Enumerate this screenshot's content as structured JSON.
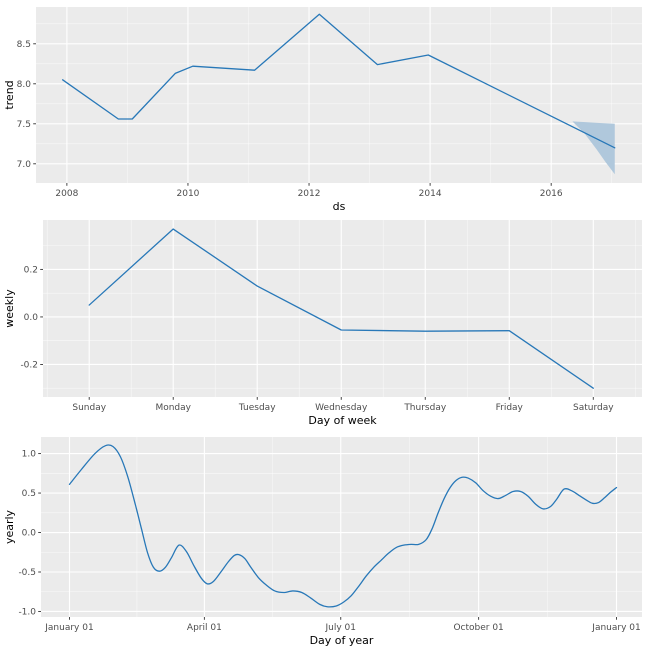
{
  "colors": {
    "page_bg": "#ffffff",
    "panel_bg": "#ebebeb",
    "grid_major": "#ffffff",
    "grid_minor": "#f7f7f7",
    "line": "#2878b8",
    "band": "#b0c8dc",
    "tick_text": "#4d4d4d",
    "title_text": "#000000",
    "tick_mark": "#333333"
  },
  "chart_data": [
    {
      "type": "line",
      "name": "trend",
      "xlabel": "ds",
      "ylabel": "trend",
      "xlim": [
        2007.49,
        2017.5
      ],
      "ylim": [
        6.76,
        8.96
      ],
      "x_ticks": [
        {
          "v": 2008,
          "label": "2008"
        },
        {
          "v": 2010,
          "label": "2010"
        },
        {
          "v": 2012,
          "label": "2012"
        },
        {
          "v": 2014,
          "label": "2014"
        },
        {
          "v": 2016,
          "label": "2016"
        }
      ],
      "x_minor": [
        2009,
        2011,
        2013,
        2015,
        2017
      ],
      "y_ticks": [
        {
          "v": 7.0,
          "label": "7.0"
        },
        {
          "v": 7.5,
          "label": "7.5"
        },
        {
          "v": 8.0,
          "label": "8.0"
        },
        {
          "v": 8.5,
          "label": "8.5"
        }
      ],
      "y_minor": [
        6.75,
        7.25,
        7.75,
        8.25,
        8.75
      ],
      "smooth": false,
      "series": [
        {
          "name": "trend",
          "points": [
            [
              2007.93,
              8.05
            ],
            [
              2008.85,
              7.56
            ],
            [
              2009.08,
              7.56
            ],
            [
              2009.79,
              8.13
            ],
            [
              2010.08,
              8.22
            ],
            [
              2011.1,
              8.17
            ],
            [
              2012.17,
              8.87
            ],
            [
              2013.13,
              8.24
            ],
            [
              2013.97,
              8.36
            ],
            [
              2017.05,
              7.2
            ]
          ]
        }
      ],
      "band": {
        "upper": [
          [
            2016.35,
            7.53
          ],
          [
            2016.6,
            7.52
          ],
          [
            2016.8,
            7.51
          ],
          [
            2017.05,
            7.5
          ]
        ],
        "lower": [
          [
            2016.35,
            7.53
          ],
          [
            2016.55,
            7.38
          ],
          [
            2016.75,
            7.18
          ],
          [
            2016.9,
            7.02
          ],
          [
            2017.05,
            6.87
          ]
        ]
      }
    },
    {
      "type": "line",
      "name": "weekly",
      "xlabel": "Day of week",
      "ylabel": "weekly",
      "xlim": [
        -0.55,
        6.58
      ],
      "ylim": [
        -0.337,
        0.408
      ],
      "x_ticks": [
        {
          "v": 0,
          "label": "Sunday"
        },
        {
          "v": 1,
          "label": "Monday"
        },
        {
          "v": 2,
          "label": "Tuesday"
        },
        {
          "v": 3,
          "label": "Wednesday"
        },
        {
          "v": 4,
          "label": "Thursday"
        },
        {
          "v": 5,
          "label": "Friday"
        },
        {
          "v": 6,
          "label": "Saturday"
        }
      ],
      "x_minor": [
        -0.5,
        0.5,
        1.5,
        2.5,
        3.5,
        4.5,
        5.5,
        6.5
      ],
      "y_ticks": [
        {
          "v": -0.2,
          "label": "-0.2"
        },
        {
          "v": 0.0,
          "label": "0.0"
        },
        {
          "v": 0.2,
          "label": "0.2"
        }
      ],
      "y_minor": [
        -0.3,
        -0.1,
        0.1,
        0.3
      ],
      "smooth": false,
      "series": [
        {
          "name": "weekly",
          "points": [
            [
              0,
              0.05
            ],
            [
              1,
              0.37
            ],
            [
              2,
              0.13
            ],
            [
              3,
              -0.055
            ],
            [
              4,
              -0.06
            ],
            [
              5,
              -0.058
            ],
            [
              6,
              -0.3
            ]
          ]
        }
      ]
    },
    {
      "type": "line",
      "name": "yearly",
      "xlabel": "Day of year",
      "ylabel": "yearly",
      "xlim": [
        -19,
        382
      ],
      "ylim": [
        -1.07,
        1.21
      ],
      "x_ticks": [
        {
          "v": 0,
          "label": "January 01"
        },
        {
          "v": 90,
          "label": "April 01"
        },
        {
          "v": 181,
          "label": "July 01"
        },
        {
          "v": 273,
          "label": "October 01"
        },
        {
          "v": 365,
          "label": "January 01"
        }
      ],
      "x_minor": [
        45,
        135.5,
        227,
        319
      ],
      "y_ticks": [
        {
          "v": -1.0,
          "label": "-1.0"
        },
        {
          "v": -0.5,
          "label": "-0.5"
        },
        {
          "v": 0.0,
          "label": "0.0"
        },
        {
          "v": 0.5,
          "label": "0.5"
        },
        {
          "v": 1.0,
          "label": "1.0"
        }
      ],
      "y_minor": [
        -0.75,
        -0.25,
        0.25,
        0.75
      ],
      "smooth": true,
      "series": [
        {
          "name": "yearly",
          "points": [
            [
              0,
              0.61
            ],
            [
              8,
              0.8
            ],
            [
              17,
              1.0
            ],
            [
              24,
              1.1
            ],
            [
              29,
              1.09
            ],
            [
              34,
              0.96
            ],
            [
              39,
              0.7
            ],
            [
              44,
              0.35
            ],
            [
              48,
              0.05
            ],
            [
              52,
              -0.25
            ],
            [
              56,
              -0.44
            ],
            [
              60,
              -0.49
            ],
            [
              64,
              -0.44
            ],
            [
              68,
              -0.32
            ],
            [
              73,
              -0.16
            ],
            [
              78,
              -0.24
            ],
            [
              83,
              -0.42
            ],
            [
              88,
              -0.58
            ],
            [
              92,
              -0.65
            ],
            [
              96,
              -0.62
            ],
            [
              101,
              -0.5
            ],
            [
              106,
              -0.37
            ],
            [
              110,
              -0.29
            ],
            [
              113,
              -0.28
            ],
            [
              117,
              -0.33
            ],
            [
              121,
              -0.44
            ],
            [
              126,
              -0.57
            ],
            [
              131,
              -0.66
            ],
            [
              137,
              -0.74
            ],
            [
              143,
              -0.76
            ],
            [
              149,
              -0.74
            ],
            [
              155,
              -0.76
            ],
            [
              161,
              -0.83
            ],
            [
              167,
              -0.91
            ],
            [
              172,
              -0.94
            ],
            [
              178,
              -0.93
            ],
            [
              183,
              -0.88
            ],
            [
              188,
              -0.8
            ],
            [
              193,
              -0.68
            ],
            [
              198,
              -0.55
            ],
            [
              203,
              -0.44
            ],
            [
              208,
              -0.35
            ],
            [
              213,
              -0.26
            ],
            [
              218,
              -0.19
            ],
            [
              223,
              -0.16
            ],
            [
              228,
              -0.15
            ],
            [
              233,
              -0.15
            ],
            [
              238,
              -0.09
            ],
            [
              242,
              0.05
            ],
            [
              246,
              0.25
            ],
            [
              250,
              0.43
            ],
            [
              254,
              0.57
            ],
            [
              258,
              0.66
            ],
            [
              262,
              0.7
            ],
            [
              266,
              0.69
            ],
            [
              271,
              0.63
            ],
            [
              276,
              0.53
            ],
            [
              281,
              0.46
            ],
            [
              286,
              0.43
            ],
            [
              291,
              0.47
            ],
            [
              296,
              0.52
            ],
            [
              301,
              0.52
            ],
            [
              306,
              0.46
            ],
            [
              311,
              0.36
            ],
            [
              316,
              0.3
            ],
            [
              321,
              0.33
            ],
            [
              325,
              0.42
            ],
            [
              330,
              0.55
            ],
            [
              335,
              0.53
            ],
            [
              340,
              0.47
            ],
            [
              345,
              0.41
            ],
            [
              349,
              0.37
            ],
            [
              353,
              0.38
            ],
            [
              357,
              0.44
            ],
            [
              361,
              0.51
            ],
            [
              365,
              0.57
            ]
          ]
        }
      ]
    }
  ]
}
